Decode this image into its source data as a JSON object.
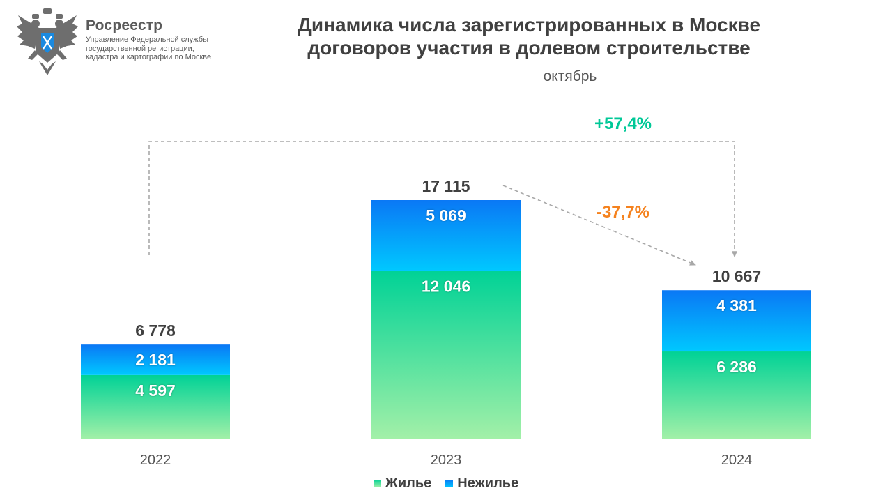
{
  "logo": {
    "title": "Росреестр",
    "subtitle": "Управление Федеральной службы государственной регистрации, кадастра и картографии по Москве",
    "emblem_icon": "double-headed-eagle-emblem"
  },
  "header": {
    "title": "Динамика числа зарегистрированных в Москве договоров участия в долевом строительстве",
    "subtitle": "октябрь"
  },
  "colors": {
    "residential_top": "#00d296",
    "residential_bottom": "#a3f0a8",
    "nonresidential_top": "#0a78f5",
    "nonresidential_bottom": "#00c8ff",
    "positive": "#00c897",
    "negative": "#f5821e",
    "arrow": "#a8a8a8"
  },
  "chart_data": {
    "type": "bar",
    "stacked": true,
    "categories": [
      "2022",
      "2023",
      "2024"
    ],
    "series": [
      {
        "name": "Жилье",
        "values": [
          4597,
          12046,
          6286
        ],
        "labels": [
          "4 597",
          "12 046",
          "6 286"
        ]
      },
      {
        "name": "Нежилье",
        "values": [
          2181,
          5069,
          4381
        ],
        "labels": [
          "2 181",
          "5 069",
          "4 381"
        ]
      }
    ],
    "totals": [
      6778,
      17115,
      10667
    ],
    "total_labels": [
      "6 778",
      "17 115",
      "10 667"
    ],
    "annotations": [
      {
        "text": "+57,4%",
        "from": "2022",
        "to": "2024",
        "style": "positive"
      },
      {
        "text": "-37,7%",
        "from": "2023",
        "to": "2024",
        "style": "negative"
      }
    ],
    "legend_position": "bottom",
    "grid": false,
    "ylim": [
      0,
      18000
    ]
  }
}
